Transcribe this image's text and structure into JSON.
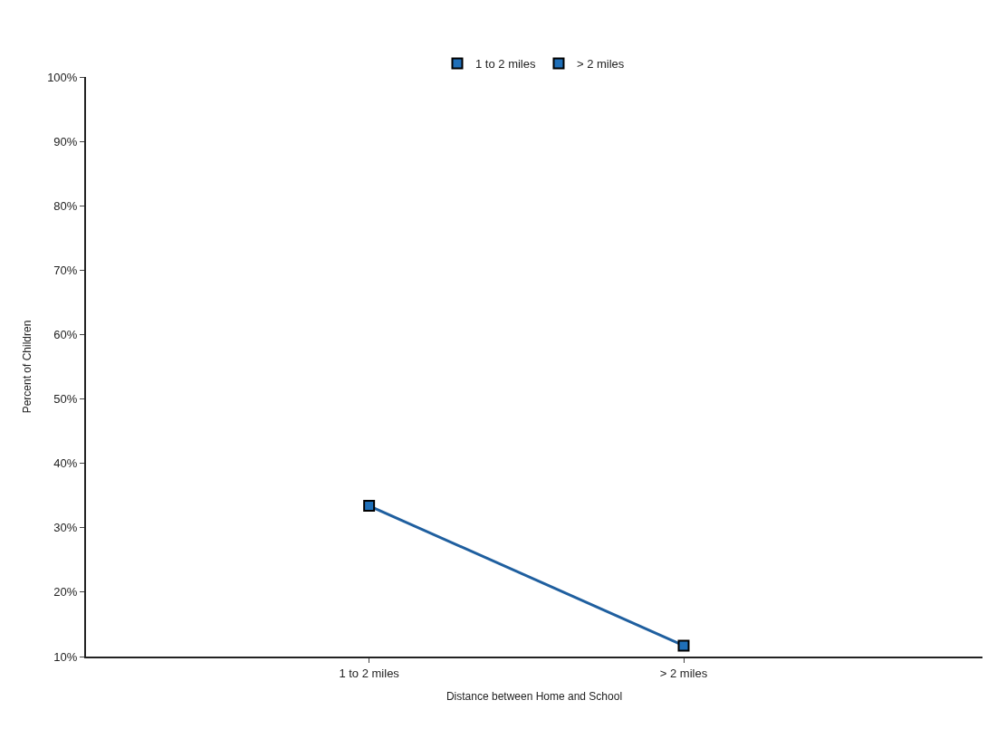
{
  "chart_data": {
    "type": "line",
    "xlabel": "Distance between Home and School",
    "ylabel": "Percent of Children",
    "categories": [
      "1 to 2 miles",
      "> 2 miles"
    ],
    "series": [
      {
        "color": "#1f5f9f",
        "values": [
          33.4,
          11.7
        ],
        "marker": "none"
      },
      {
        "name": "1 to 2 miles",
        "color": "#1f6fb8",
        "values": [
          33.4,
          null
        ],
        "marker": "square",
        "type": "scatter"
      },
      {
        "name": "> 2 miles",
        "color": "#1f6fb8",
        "values": [
          null,
          11.7
        ],
        "marker": "square",
        "type": "scatter"
      }
    ],
    "ylim": [
      10,
      100
    ],
    "yticks": [
      {
        "value": 10,
        "label": "10%"
      },
      {
        "value": 20,
        "label": "20%"
      },
      {
        "value": 30,
        "label": "30%"
      },
      {
        "value": 40,
        "label": "40%"
      },
      {
        "value": 50,
        "label": "50%"
      },
      {
        "value": 60,
        "label": "60%"
      },
      {
        "value": 70,
        "label": "70%"
      },
      {
        "value": 80,
        "label": "80%"
      },
      {
        "value": 90,
        "label": "90%"
      },
      {
        "value": 100,
        "label": "100%"
      }
    ],
    "grid": false,
    "legend": "top"
  }
}
